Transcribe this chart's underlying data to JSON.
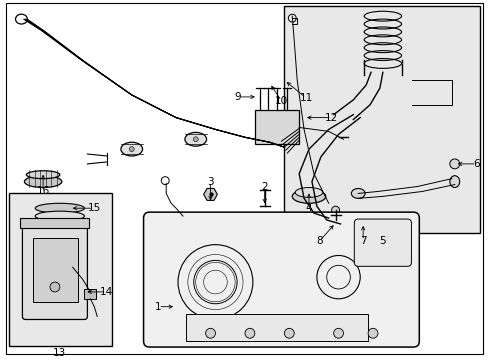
{
  "background_color": "#ffffff",
  "line_color": "#000000",
  "label_color": "#000000",
  "fig_width": 4.89,
  "fig_height": 3.6,
  "dpi": 100,
  "inset_right_bg": "#e8e8e8",
  "inset_left_bg": "#e8e8e8",
  "fuel_line_color": "#333333",
  "component_fill": "#f0f0f0",
  "component_fill2": "#d8d8d8"
}
